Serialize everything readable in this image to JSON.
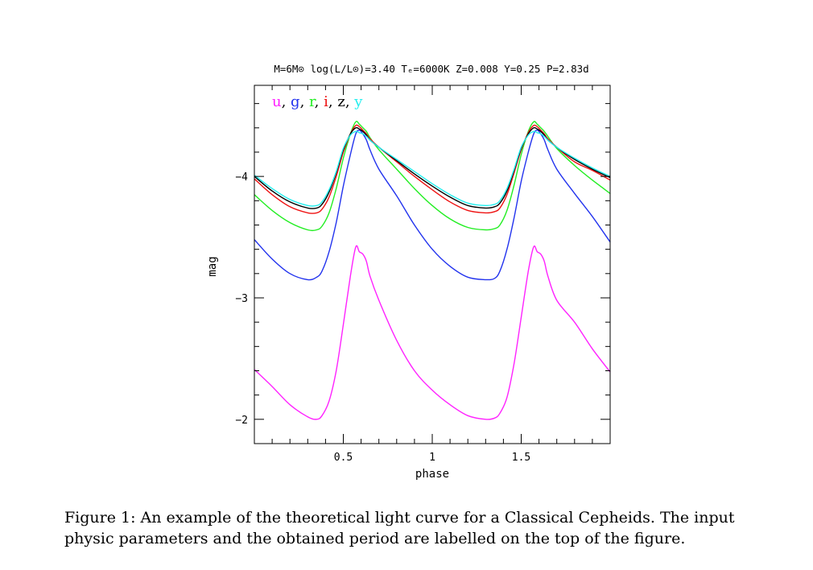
{
  "chart_data": {
    "type": "line",
    "title": "M=6M⊙ log(L/L⊙)=3.40 Tₑ=6000K Z=0.008 Y=0.25 P=2.83d",
    "xlabel": "phase",
    "ylabel": "mag",
    "xlim": [
      0,
      2
    ],
    "ylim": [
      -1.8,
      -4.75
    ],
    "y_inverted": true,
    "x_ticks": [
      0.5,
      1,
      1.5
    ],
    "x_tick_labels": [
      "0.5",
      "1",
      "1.5"
    ],
    "y_ticks": [
      -2,
      -3,
      -4
    ],
    "y_tick_labels": [
      "−2",
      "−3",
      "−4"
    ],
    "grid": false,
    "legend": {
      "placement": "top-left",
      "separator": ",",
      "entries": [
        "u",
        "g",
        "r",
        "i",
        "z",
        "y"
      ]
    },
    "series": [
      {
        "name": "u",
        "color": "#ff22ff",
        "x": [
          0,
          0.1,
          0.2,
          0.3,
          0.35,
          0.38,
          0.42,
          0.46,
          0.5,
          0.54,
          0.57,
          0.59,
          0.61,
          0.63,
          0.65,
          0.7,
          0.8,
          0.9,
          1.0,
          1.1,
          1.2,
          1.3,
          1.35,
          1.38,
          1.42,
          1.46,
          1.5,
          1.54,
          1.57,
          1.59,
          1.61,
          1.63,
          1.65,
          1.7,
          1.8,
          1.9,
          2.0
        ],
        "values": [
          -2.41,
          -2.27,
          -2.12,
          -2.02,
          -2.0,
          -2.03,
          -2.15,
          -2.4,
          -2.78,
          -3.18,
          -3.42,
          -3.38,
          -3.36,
          -3.3,
          -3.18,
          -2.98,
          -2.65,
          -2.4,
          -2.24,
          -2.12,
          -2.03,
          -2.0,
          -2.01,
          -2.05,
          -2.18,
          -2.46,
          -2.84,
          -3.22,
          -3.42,
          -3.38,
          -3.36,
          -3.3,
          -3.18,
          -2.98,
          -2.8,
          -2.58,
          -2.39
        ]
      },
      {
        "name": "g",
        "color": "#2233ee",
        "x": [
          0,
          0.1,
          0.2,
          0.3,
          0.35,
          0.38,
          0.42,
          0.46,
          0.5,
          0.54,
          0.57,
          0.59,
          0.61,
          0.63,
          0.65,
          0.7,
          0.8,
          0.9,
          1.0,
          1.1,
          1.2,
          1.3,
          1.35,
          1.38,
          1.42,
          1.46,
          1.5,
          1.54,
          1.57,
          1.59,
          1.61,
          1.63,
          1.65,
          1.7,
          1.8,
          1.9,
          2.0
        ],
        "values": [
          -3.48,
          -3.32,
          -3.2,
          -3.15,
          -3.17,
          -3.22,
          -3.38,
          -3.62,
          -3.92,
          -4.18,
          -4.35,
          -4.38,
          -4.35,
          -4.3,
          -4.22,
          -4.06,
          -3.84,
          -3.6,
          -3.4,
          -3.26,
          -3.17,
          -3.15,
          -3.16,
          -3.22,
          -3.4,
          -3.66,
          -3.96,
          -4.2,
          -4.35,
          -4.38,
          -4.35,
          -4.3,
          -4.22,
          -4.06,
          -3.86,
          -3.67,
          -3.46
        ]
      },
      {
        "name": "r",
        "color": "#22ee22",
        "x": [
          0,
          0.1,
          0.2,
          0.3,
          0.35,
          0.38,
          0.42,
          0.46,
          0.5,
          0.54,
          0.57,
          0.59,
          0.61,
          0.63,
          0.65,
          0.7,
          0.8,
          0.9,
          1.0,
          1.1,
          1.2,
          1.3,
          1.35,
          1.38,
          1.42,
          1.46,
          1.5,
          1.54,
          1.57,
          1.59,
          1.61,
          1.63,
          1.65,
          1.7,
          1.8,
          1.9,
          2.0
        ],
        "values": [
          -3.85,
          -3.72,
          -3.62,
          -3.56,
          -3.56,
          -3.59,
          -3.7,
          -3.9,
          -4.15,
          -4.35,
          -4.45,
          -4.43,
          -4.4,
          -4.37,
          -4.32,
          -4.22,
          -4.06,
          -3.9,
          -3.76,
          -3.65,
          -3.58,
          -3.56,
          -3.57,
          -3.6,
          -3.72,
          -3.93,
          -4.18,
          -4.37,
          -4.45,
          -4.43,
          -4.4,
          -4.37,
          -4.33,
          -4.23,
          -4.09,
          -3.97,
          -3.86
        ]
      },
      {
        "name": "i",
        "color": "#ee1111",
        "x": [
          0,
          0.1,
          0.2,
          0.3,
          0.35,
          0.38,
          0.42,
          0.46,
          0.5,
          0.54,
          0.57,
          0.59,
          0.61,
          0.63,
          0.65,
          0.7,
          0.8,
          0.9,
          1.0,
          1.1,
          1.2,
          1.3,
          1.35,
          1.38,
          1.42,
          1.46,
          1.5,
          1.54,
          1.57,
          1.59,
          1.61,
          1.63,
          1.65,
          1.7,
          1.8,
          1.9,
          2.0
        ],
        "values": [
          -3.98,
          -3.85,
          -3.75,
          -3.7,
          -3.7,
          -3.73,
          -3.83,
          -4.0,
          -4.2,
          -4.35,
          -4.42,
          -4.41,
          -4.38,
          -4.35,
          -4.31,
          -4.24,
          -4.12,
          -4.0,
          -3.89,
          -3.79,
          -3.72,
          -3.7,
          -3.71,
          -3.74,
          -3.85,
          -4.03,
          -4.22,
          -4.36,
          -4.42,
          -4.41,
          -4.38,
          -4.35,
          -4.31,
          -4.24,
          -4.12,
          -4.05,
          -3.97
        ]
      },
      {
        "name": "z",
        "color": "#000000",
        "x": [
          0,
          0.1,
          0.2,
          0.3,
          0.35,
          0.38,
          0.42,
          0.46,
          0.5,
          0.54,
          0.57,
          0.59,
          0.61,
          0.63,
          0.65,
          0.7,
          0.8,
          0.9,
          1.0,
          1.1,
          1.2,
          1.3,
          1.35,
          1.38,
          1.42,
          1.46,
          1.5,
          1.54,
          1.57,
          1.59,
          1.61,
          1.63,
          1.65,
          1.7,
          1.8,
          1.9,
          2.0
        ],
        "values": [
          -4.0,
          -3.88,
          -3.79,
          -3.74,
          -3.74,
          -3.77,
          -3.87,
          -4.03,
          -4.22,
          -4.35,
          -4.4,
          -4.39,
          -4.37,
          -4.34,
          -4.3,
          -4.24,
          -4.13,
          -4.02,
          -3.92,
          -3.83,
          -3.76,
          -3.74,
          -3.75,
          -3.78,
          -3.88,
          -4.05,
          -4.23,
          -4.35,
          -4.4,
          -4.39,
          -4.37,
          -4.34,
          -4.3,
          -4.24,
          -4.14,
          -4.06,
          -3.99
        ]
      },
      {
        "name": "y",
        "color": "#22eeee",
        "x": [
          0,
          0.1,
          0.2,
          0.3,
          0.35,
          0.38,
          0.42,
          0.46,
          0.5,
          0.54,
          0.57,
          0.59,
          0.61,
          0.63,
          0.65,
          0.7,
          0.8,
          0.9,
          1.0,
          1.1,
          1.2,
          1.3,
          1.35,
          1.38,
          1.42,
          1.46,
          1.5,
          1.54,
          1.57,
          1.59,
          1.61,
          1.63,
          1.65,
          1.7,
          1.8,
          1.9,
          2.0
        ],
        "values": [
          -4.01,
          -3.9,
          -3.81,
          -3.76,
          -3.76,
          -3.79,
          -3.89,
          -4.04,
          -4.23,
          -4.34,
          -4.37,
          -4.36,
          -4.35,
          -4.33,
          -4.3,
          -4.24,
          -4.14,
          -4.04,
          -3.94,
          -3.85,
          -3.78,
          -3.76,
          -3.77,
          -3.8,
          -3.9,
          -4.06,
          -4.24,
          -4.34,
          -4.37,
          -4.36,
          -4.35,
          -4.33,
          -4.3,
          -4.24,
          -4.15,
          -4.07,
          -4.0
        ]
      }
    ]
  },
  "caption": "Figure 1:  An example of the theoretical light curve for a Classical Cepheids.  The input physic parameters and the obtained period are labelled on the top of the figure."
}
